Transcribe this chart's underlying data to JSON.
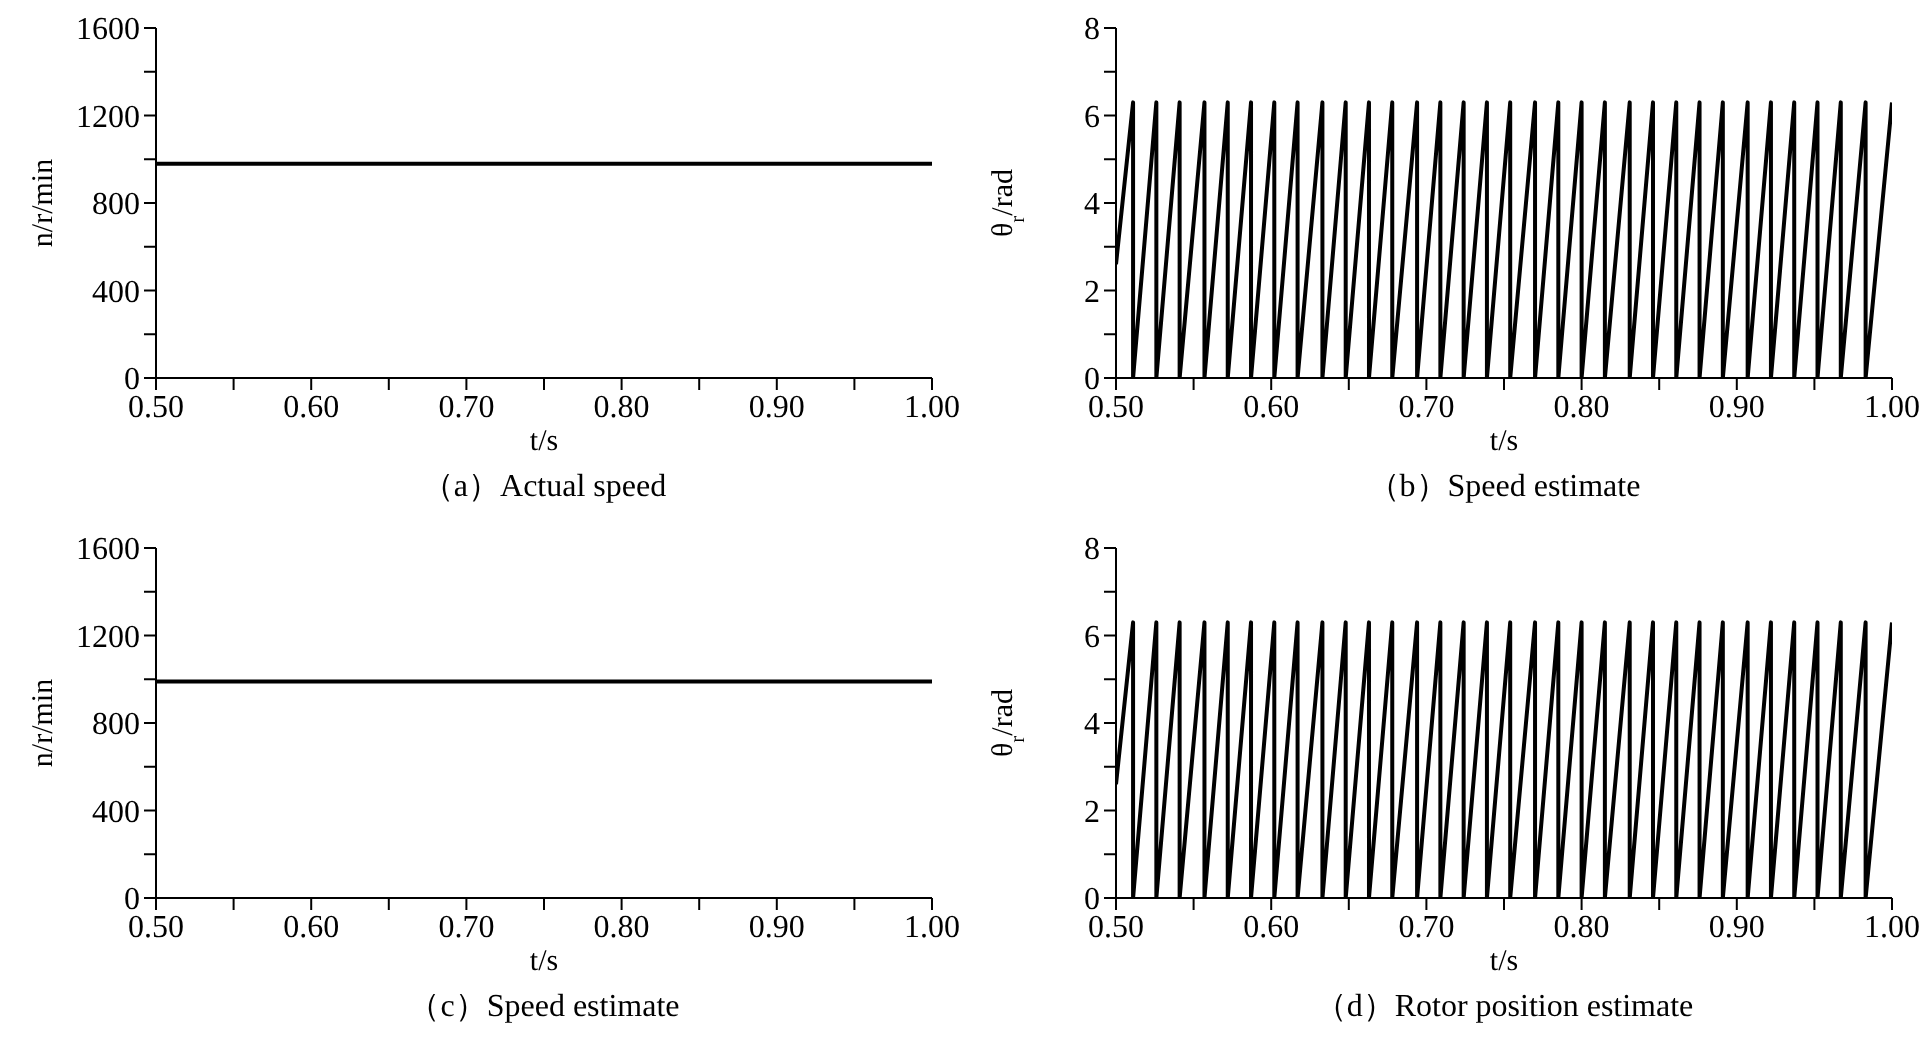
{
  "chart_data": [
    {
      "type": "line",
      "title": "（a）Actual speed",
      "xlabel": "t/s",
      "ylabel": "n/r/min",
      "color": "#000000",
      "x": [
        0.5,
        1.0
      ],
      "values": [
        980,
        980
      ],
      "xlim": [
        0.5,
        1.0
      ],
      "ylim": [
        0,
        1600
      ],
      "xticks": [
        {
          "value": 0.5,
          "label": "0.50"
        },
        {
          "value": 0.55,
          "label": null
        },
        {
          "value": 0.6,
          "label": "0.60"
        },
        {
          "value": 0.65,
          "label": null
        },
        {
          "value": 0.7,
          "label": "0.70"
        },
        {
          "value": 0.75,
          "label": null
        },
        {
          "value": 0.8,
          "label": "0.80"
        },
        {
          "value": 0.85,
          "label": null
        },
        {
          "value": 0.9,
          "label": "0.90"
        },
        {
          "value": 0.95,
          "label": null
        },
        {
          "value": 1.0,
          "label": "1.00"
        }
      ],
      "yticks": [
        0,
        {
          "value": 200,
          "label": null
        },
        400,
        {
          "value": 600,
          "label": null
        },
        800,
        {
          "value": 1000,
          "label": null
        },
        1200,
        {
          "value": 1400,
          "label": null
        },
        1600
      ]
    },
    {
      "type": "line",
      "title": "（b）Speed estimate",
      "xlabel": "t/s",
      "ylabel": "θ$_{r}$/rad",
      "color": "#000000",
      "x": [
        0.5,
        0.511,
        0.511,
        0.526,
        0.526,
        0.541,
        0.541,
        0.557,
        0.557,
        0.572,
        0.572,
        0.587,
        0.587,
        0.602,
        0.602,
        0.617,
        0.617,
        0.633,
        0.633,
        0.648,
        0.648,
        0.663,
        0.663,
        0.678,
        0.678,
        0.694,
        0.694,
        0.709,
        0.709,
        0.724,
        0.724,
        0.739,
        0.739,
        0.754,
        0.754,
        0.77,
        0.77,
        0.785,
        0.785,
        0.8,
        0.8,
        0.815,
        0.815,
        0.831,
        0.831,
        0.846,
        0.846,
        0.861,
        0.861,
        0.876,
        0.876,
        0.891,
        0.891,
        0.907,
        0.907,
        0.922,
        0.922,
        0.937,
        0.937,
        0.952,
        0.952,
        0.967,
        0.967,
        0.983,
        0.983,
        1.0
      ],
      "values": [
        2.6,
        6.3,
        0,
        6.3,
        0,
        6.3,
        0,
        6.3,
        0,
        6.3,
        0,
        6.3,
        0,
        6.3,
        0,
        6.3,
        0,
        6.3,
        0,
        6.3,
        0,
        6.3,
        0,
        6.3,
        0,
        6.3,
        0,
        6.3,
        0,
        6.3,
        0,
        6.3,
        0,
        6.3,
        0,
        6.3,
        0,
        6.3,
        0,
        6.3,
        0,
        6.3,
        0,
        6.3,
        0,
        6.3,
        0,
        6.3,
        0,
        6.3,
        0,
        6.3,
        0,
        6.3,
        0,
        6.3,
        0,
        6.3,
        0,
        6.3,
        0,
        6.3,
        0,
        6.3,
        0,
        6.3
      ],
      "xlim": [
        0.5,
        1.0
      ],
      "ylim": [
        0,
        8
      ],
      "xticks": [
        {
          "value": 0.5,
          "label": "0.50"
        },
        {
          "value": 0.55,
          "label": null
        },
        {
          "value": 0.6,
          "label": "0.60"
        },
        {
          "value": 0.65,
          "label": null
        },
        {
          "value": 0.7,
          "label": "0.70"
        },
        {
          "value": 0.75,
          "label": null
        },
        {
          "value": 0.8,
          "label": "0.80"
        },
        {
          "value": 0.85,
          "label": null
        },
        {
          "value": 0.9,
          "label": "0.90"
        },
        {
          "value": 0.95,
          "label": null
        },
        {
          "value": 1.0,
          "label": "1.00"
        }
      ],
      "yticks": [
        0,
        {
          "value": 1,
          "label": null
        },
        2,
        {
          "value": 3,
          "label": null
        },
        4,
        {
          "value": 5,
          "label": null
        },
        6,
        {
          "value": 7,
          "label": null
        },
        8
      ]
    },
    {
      "type": "line",
      "title": "（c）Speed estimate",
      "xlabel": "t/s",
      "ylabel": "n/r/min",
      "color": "#000000",
      "x": [
        0.5,
        1.0
      ],
      "values": [
        990,
        990
      ],
      "xlim": [
        0.5,
        1.0
      ],
      "ylim": [
        0,
        1600
      ],
      "xticks": [
        {
          "value": 0.5,
          "label": "0.50"
        },
        {
          "value": 0.55,
          "label": null
        },
        {
          "value": 0.6,
          "label": "0.60"
        },
        {
          "value": 0.65,
          "label": null
        },
        {
          "value": 0.7,
          "label": "0.70"
        },
        {
          "value": 0.75,
          "label": null
        },
        {
          "value": 0.8,
          "label": "0.80"
        },
        {
          "value": 0.85,
          "label": null
        },
        {
          "value": 0.9,
          "label": "0.90"
        },
        {
          "value": 0.95,
          "label": null
        },
        {
          "value": 1.0,
          "label": "1.00"
        }
      ],
      "yticks": [
        0,
        {
          "value": 200,
          "label": null
        },
        400,
        {
          "value": 600,
          "label": null
        },
        800,
        {
          "value": 1000,
          "label": null
        },
        1200,
        {
          "value": 1400,
          "label": null
        },
        1600
      ]
    },
    {
      "type": "line",
      "title": "（d）Rotor position estimate",
      "xlabel": "t/s",
      "ylabel": "θ$_{r}$/rad",
      "color": "#000000",
      "x": [
        0.5,
        0.511,
        0.511,
        0.526,
        0.526,
        0.541,
        0.541,
        0.557,
        0.557,
        0.572,
        0.572,
        0.587,
        0.587,
        0.602,
        0.602,
        0.617,
        0.617,
        0.633,
        0.633,
        0.648,
        0.648,
        0.663,
        0.663,
        0.678,
        0.678,
        0.694,
        0.694,
        0.709,
        0.709,
        0.724,
        0.724,
        0.739,
        0.739,
        0.754,
        0.754,
        0.77,
        0.77,
        0.785,
        0.785,
        0.8,
        0.8,
        0.815,
        0.815,
        0.831,
        0.831,
        0.846,
        0.846,
        0.861,
        0.861,
        0.876,
        0.876,
        0.891,
        0.891,
        0.907,
        0.907,
        0.922,
        0.922,
        0.937,
        0.937,
        0.952,
        0.952,
        0.967,
        0.967,
        0.983,
        0.983,
        1.0
      ],
      "values": [
        2.6,
        6.3,
        0,
        6.3,
        0,
        6.3,
        0,
        6.3,
        0,
        6.3,
        0,
        6.3,
        0,
        6.3,
        0,
        6.3,
        0,
        6.3,
        0,
        6.3,
        0,
        6.3,
        0,
        6.3,
        0,
        6.3,
        0,
        6.3,
        0,
        6.3,
        0,
        6.3,
        0,
        6.3,
        0,
        6.3,
        0,
        6.3,
        0,
        6.3,
        0,
        6.3,
        0,
        6.3,
        0,
        6.3,
        0,
        6.3,
        0,
        6.3,
        0,
        6.3,
        0,
        6.3,
        0,
        6.3,
        0,
        6.3,
        0,
        6.3,
        0,
        6.3,
        0,
        6.3,
        0,
        6.3
      ],
      "xlim": [
        0.5,
        1.0
      ],
      "ylim": [
        0,
        8
      ],
      "xticks": [
        {
          "value": 0.5,
          "label": "0.50"
        },
        {
          "value": 0.55,
          "label": null
        },
        {
          "value": 0.6,
          "label": "0.60"
        },
        {
          "value": 0.65,
          "label": null
        },
        {
          "value": 0.7,
          "label": "0.70"
        },
        {
          "value": 0.75,
          "label": null
        },
        {
          "value": 0.8,
          "label": "0.80"
        },
        {
          "value": 0.85,
          "label": null
        },
        {
          "value": 0.9,
          "label": "0.90"
        },
        {
          "value": 0.95,
          "label": null
        },
        {
          "value": 1.0,
          "label": "1.00"
        }
      ],
      "yticks": [
        0,
        {
          "value": 1,
          "label": null
        },
        2,
        {
          "value": 3,
          "label": null
        },
        4,
        {
          "value": 5,
          "label": null
        },
        6,
        {
          "value": 7,
          "label": null
        },
        8
      ]
    }
  ]
}
